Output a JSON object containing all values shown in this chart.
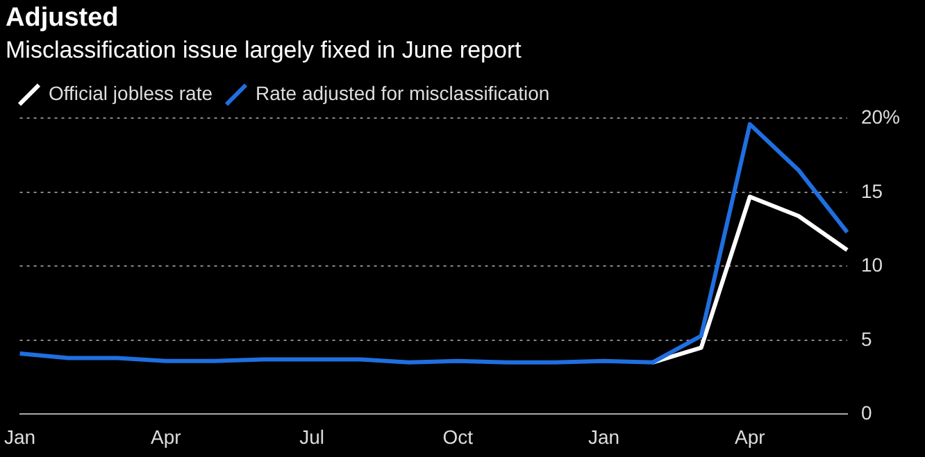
{
  "chart_data": {
    "type": "line",
    "title": "Adjusted",
    "subtitle": "Misclassification issue largely fixed in June report",
    "categories": [
      "Jan",
      null,
      null,
      "Apr",
      null,
      null,
      "Jul",
      null,
      null,
      "Oct",
      null,
      null,
      "Jan",
      null,
      null,
      "Apr",
      null,
      null
    ],
    "series": [
      {
        "name": "Official jobless rate",
        "color": "#ffffff",
        "values": [
          null,
          null,
          null,
          null,
          null,
          null,
          null,
          null,
          null,
          null,
          null,
          null,
          null,
          3.5,
          4.5,
          14.7,
          13.4,
          11.1
        ]
      },
      {
        "name": "Rate adjusted for misclassification",
        "color": "#1f6fe0",
        "values": [
          4.1,
          3.8,
          3.8,
          3.6,
          3.6,
          3.7,
          3.7,
          3.7,
          3.5,
          3.6,
          3.5,
          3.5,
          3.6,
          3.5,
          5.3,
          19.6,
          16.5,
          12.3
        ]
      }
    ],
    "ylim": [
      0,
      20
    ],
    "yticks": [
      0,
      5,
      10,
      15,
      {
        "value": 20,
        "label": "20%"
      }
    ],
    "grid": "y",
    "legend": "top left",
    "marker": "none",
    "line_style": "solid"
  }
}
